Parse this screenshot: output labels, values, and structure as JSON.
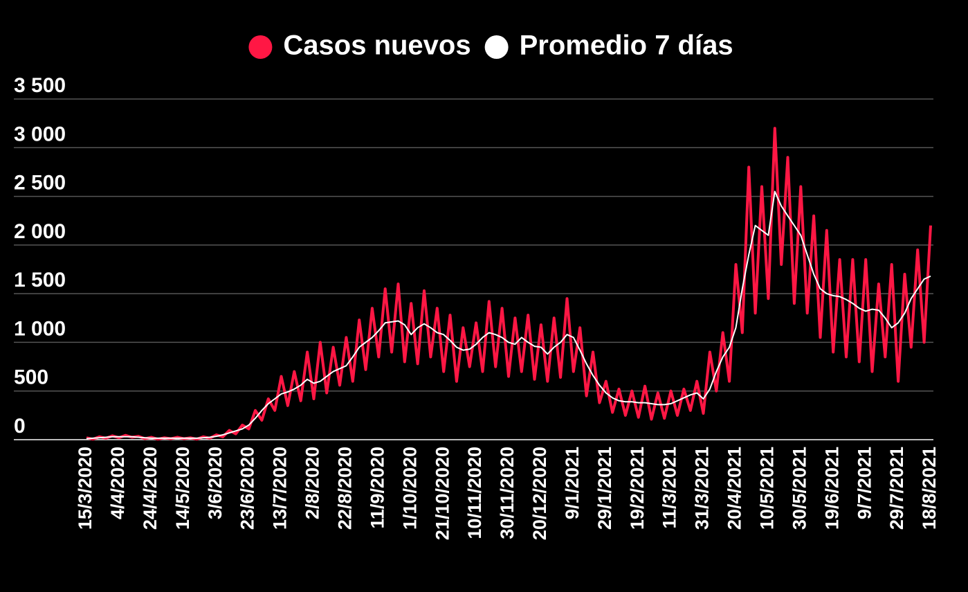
{
  "chart_data": {
    "type": "line",
    "categories": [
      "15/3/2020",
      null,
      null,
      null,
      null,
      "4/4/2020",
      null,
      null,
      null,
      null,
      "24/4/2020",
      null,
      null,
      null,
      null,
      "14/5/2020",
      null,
      null,
      null,
      null,
      "3/6/2020",
      null,
      null,
      null,
      null,
      "23/6/2020",
      null,
      null,
      null,
      null,
      "13/7/2020",
      null,
      null,
      null,
      null,
      "2/8/2020",
      null,
      null,
      null,
      null,
      "22/8/2020",
      null,
      null,
      null,
      null,
      "11/9/2020",
      null,
      null,
      null,
      null,
      "1/10/2020",
      null,
      null,
      null,
      null,
      "21/10/2020",
      null,
      null,
      null,
      null,
      "10/11/2020",
      null,
      null,
      null,
      null,
      "30/11/2020",
      null,
      null,
      null,
      null,
      "20/12/2020",
      null,
      null,
      null,
      null,
      "9/1/2021",
      null,
      null,
      null,
      null,
      "29/1/2021",
      null,
      null,
      null,
      null,
      "19/2/2021",
      null,
      null,
      null,
      null,
      "11/3/2021",
      null,
      null,
      null,
      null,
      "31/3/2021",
      null,
      null,
      null,
      null,
      "20/4/2021",
      null,
      null,
      null,
      null,
      "10/5/2021",
      null,
      null,
      null,
      null,
      "30/5/2021",
      null,
      null,
      null,
      null,
      "19/6/2021",
      null,
      null,
      null,
      null,
      "9/7/2021",
      null,
      null,
      null,
      null,
      "29/7/2021",
      null,
      null,
      null,
      null,
      "18/8/2021"
    ],
    "series": [
      {
        "name": "Casos nuevos",
        "color": "#ff1744",
        "values": [
          20,
          5,
          30,
          15,
          40,
          20,
          45,
          25,
          35,
          10,
          25,
          5,
          20,
          10,
          25,
          10,
          20,
          5,
          30,
          15,
          50,
          30,
          95,
          60,
          150,
          110,
          300,
          200,
          420,
          300,
          650,
          350,
          700,
          400,
          900,
          420,
          1000,
          480,
          950,
          560,
          1050,
          600,
          1230,
          720,
          1350,
          850,
          1550,
          900,
          1600,
          800,
          1400,
          780,
          1530,
          850,
          1350,
          700,
          1280,
          600,
          1150,
          750,
          1200,
          700,
          1420,
          750,
          1350,
          650,
          1250,
          700,
          1280,
          620,
          1180,
          600,
          1250,
          640,
          1450,
          700,
          1150,
          450,
          900,
          380,
          600,
          280,
          520,
          250,
          500,
          230,
          550,
          210,
          480,
          220,
          500,
          250,
          520,
          300,
          600,
          270,
          900,
          500,
          1100,
          600,
          1800,
          1100,
          2800,
          1300,
          2600,
          1450,
          3200,
          1800,
          2900,
          1400,
          2600,
          1300,
          2300,
          1050,
          2150,
          900,
          1850,
          850,
          1850,
          800,
          1850,
          700,
          1600,
          850,
          1800,
          600,
          1700,
          950,
          1950,
          1000,
          2200
        ]
      },
      {
        "name": "Promedio 7 días",
        "color": "#ffffff",
        "values": [
          10,
          15,
          20,
          25,
          30,
          30,
          30,
          30,
          25,
          20,
          15,
          15,
          15,
          15,
          15,
          15,
          15,
          15,
          20,
          25,
          35,
          50,
          70,
          90,
          110,
          150,
          220,
          300,
          370,
          420,
          470,
          490,
          520,
          560,
          620,
          580,
          600,
          650,
          700,
          730,
          760,
          850,
          950,
          1000,
          1050,
          1120,
          1200,
          1210,
          1220,
          1180,
          1080,
          1150,
          1190,
          1150,
          1100,
          1080,
          1020,
          950,
          920,
          930,
          980,
          1050,
          1100,
          1080,
          1050,
          1000,
          980,
          1050,
          1000,
          960,
          950,
          880,
          950,
          1000,
          1080,
          1050,
          920,
          780,
          660,
          560,
          480,
          430,
          400,
          390,
          390,
          380,
          380,
          370,
          360,
          360,
          370,
          400,
          430,
          460,
          480,
          420,
          520,
          700,
          850,
          950,
          1150,
          1550,
          1900,
          2200,
          2150,
          2100,
          2550,
          2400,
          2300,
          2200,
          2100,
          1900,
          1700,
          1550,
          1500,
          1480,
          1470,
          1440,
          1400,
          1350,
          1320,
          1340,
          1330,
          1250,
          1150,
          1200,
          1300,
          1450,
          1550,
          1650,
          1680
        ]
      }
    ],
    "ylim": [
      0,
      3500
    ],
    "yticks": [
      0,
      500,
      {
        "value": 1000,
        "label": "1 000"
      },
      {
        "value": 1500,
        "label": "1 500"
      },
      {
        "value": 2000,
        "label": "2 000"
      },
      {
        "value": 2500,
        "label": "2 500"
      },
      {
        "value": 3000,
        "label": "3 000"
      },
      {
        "value": 3500,
        "label": "3 500"
      }
    ],
    "grid": true
  }
}
